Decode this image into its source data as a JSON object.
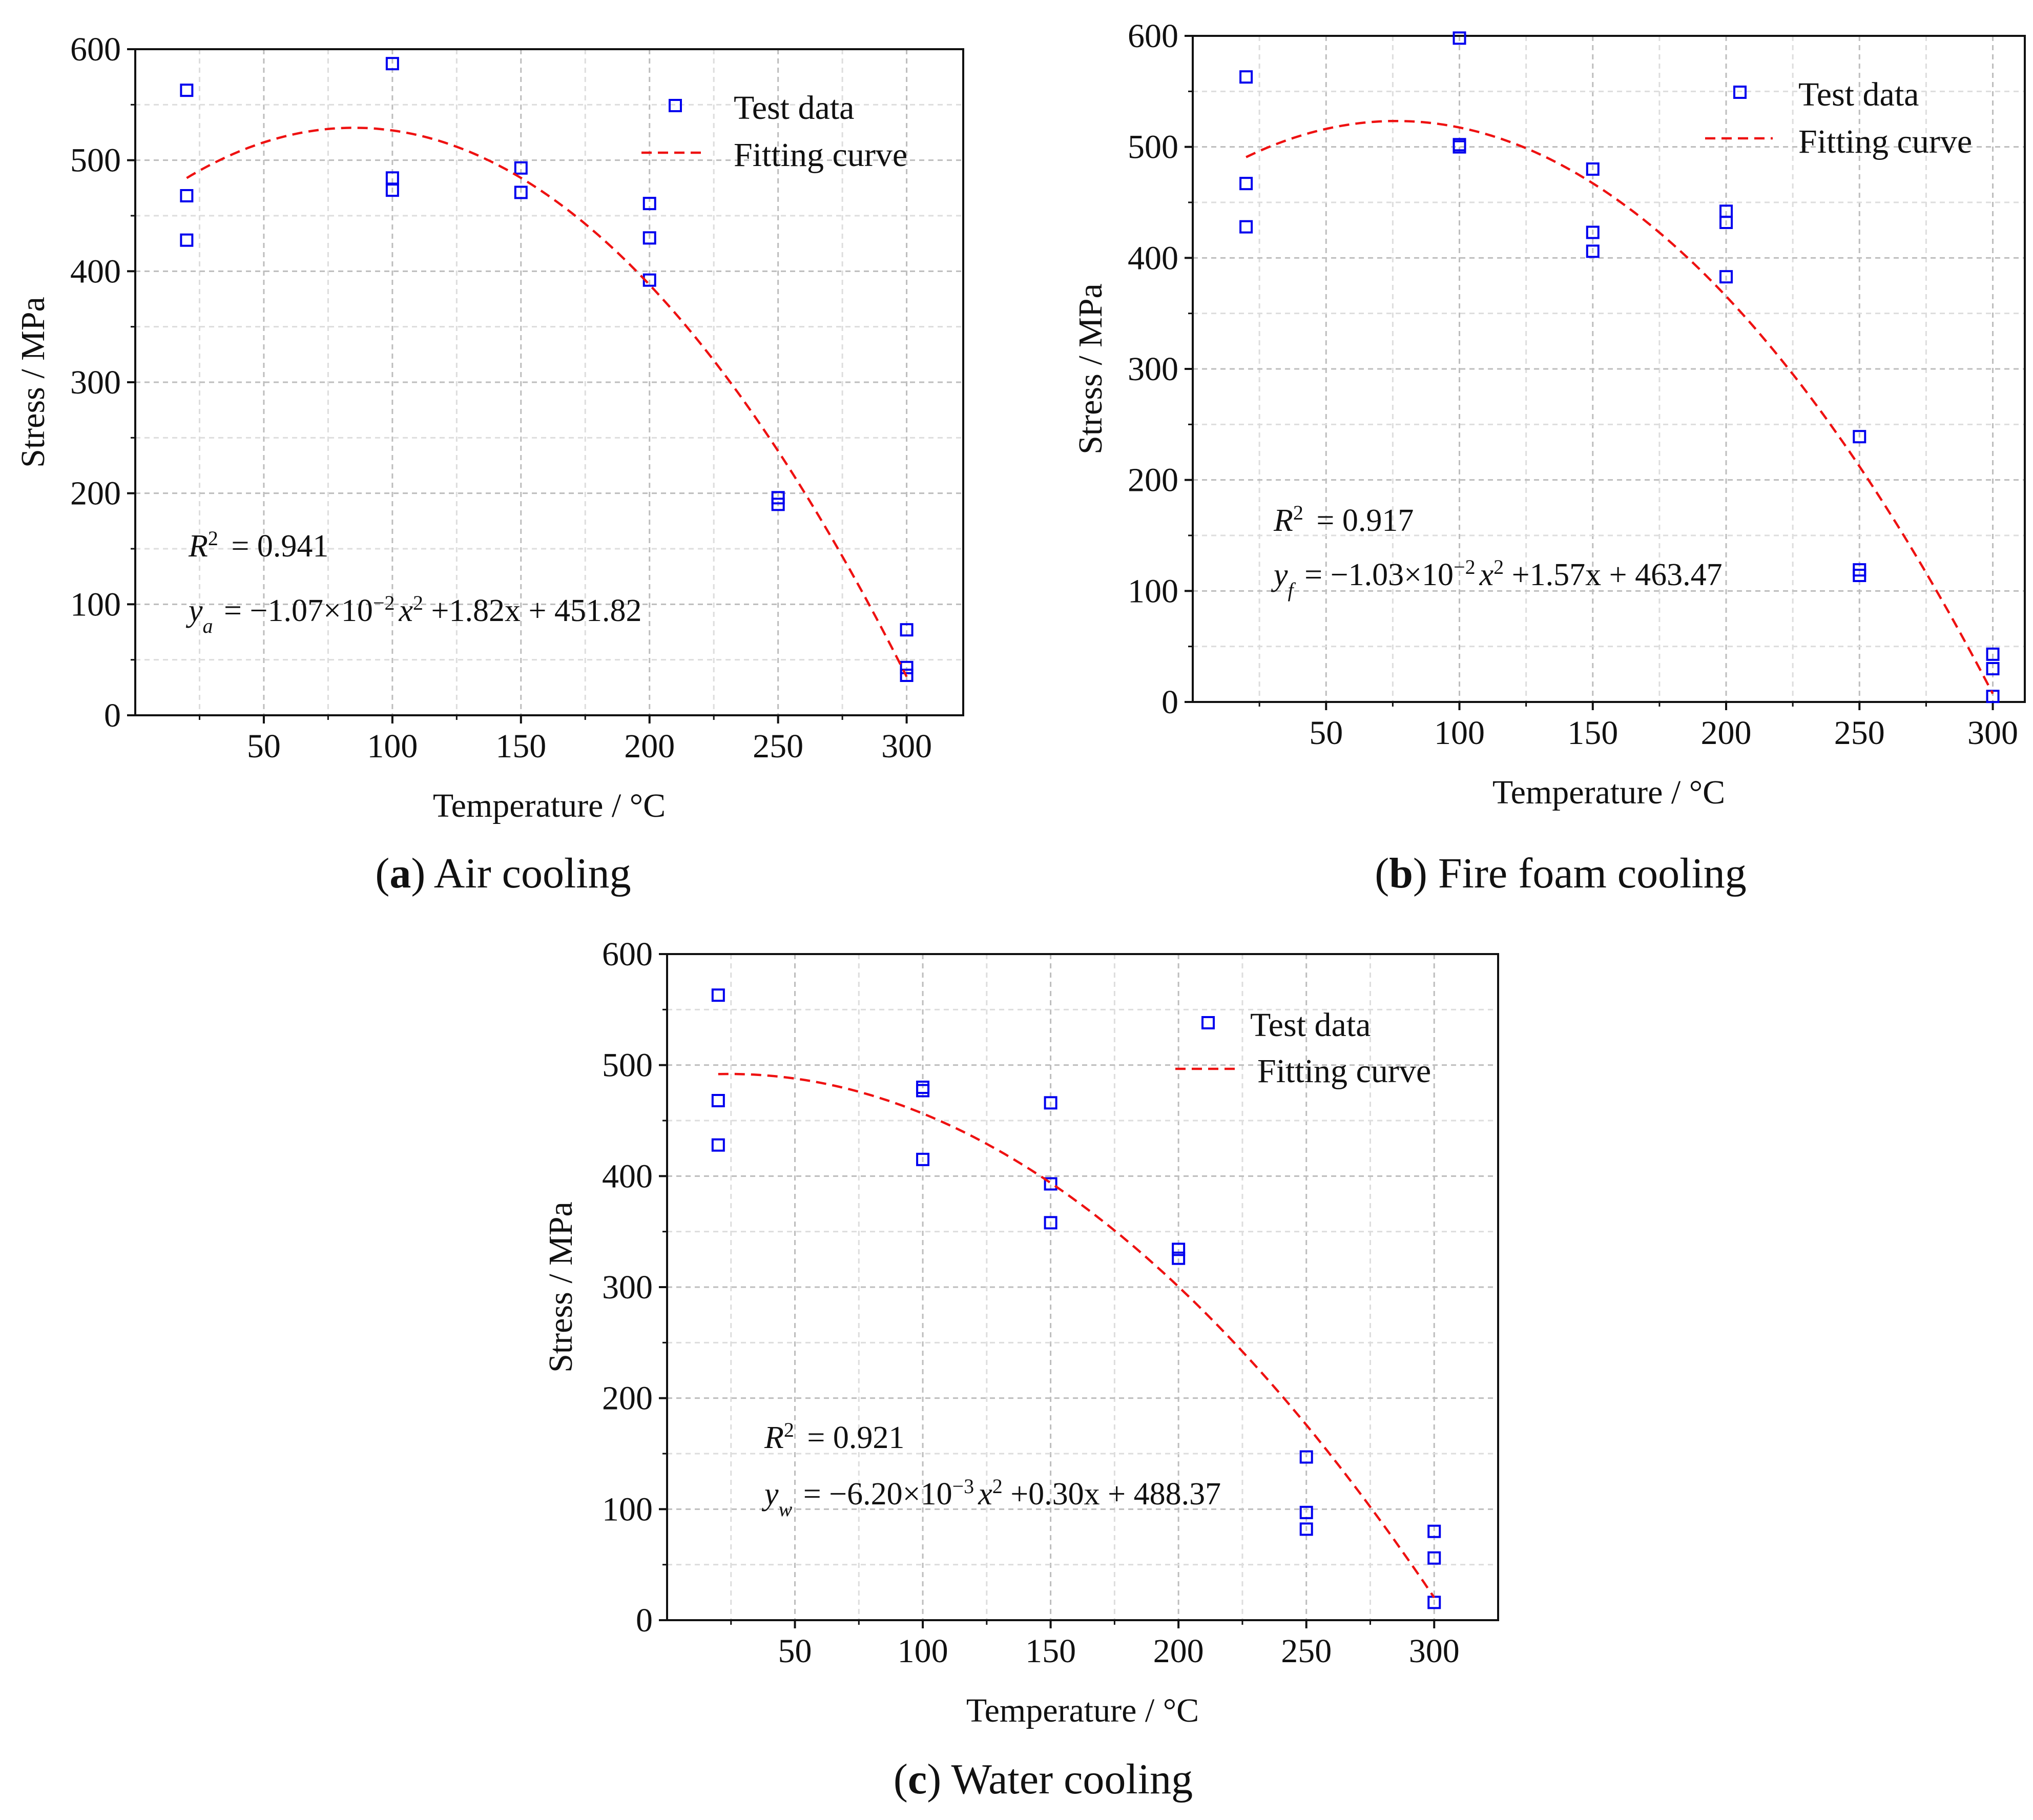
{
  "chart_data": [
    {
      "type": "scatter",
      "panel_label": "a",
      "caption": "Air cooling",
      "xlabel": "Temperature / °C",
      "ylabel": "Stress / MPa",
      "xlim": [
        0,
        322
      ],
      "ylim": [
        0,
        600
      ],
      "xticks": [
        50,
        100,
        150,
        200,
        250,
        300
      ],
      "yticks": [
        0,
        100,
        200,
        300,
        400,
        500,
        600
      ],
      "grid": true,
      "legend": {
        "position": "top-right",
        "entries": [
          "Test data",
          "Fitting curve"
        ]
      },
      "series": [
        {
          "name": "Test data",
          "kind": "scatter",
          "color": "#0000ee",
          "x": [
            20,
            20,
            20,
            100,
            100,
            100,
            150,
            150,
            200,
            200,
            200,
            250,
            250,
            300,
            300,
            300
          ],
          "y": [
            563,
            468,
            428,
            587,
            484,
            473,
            493,
            471,
            461,
            430,
            392,
            196,
            190,
            77,
            43,
            36
          ]
        },
        {
          "name": "Fitting curve",
          "kind": "line",
          "style": "dashed",
          "color": "#ee1111",
          "coefficients": [
            -0.0107,
            1.82,
            451.82
          ],
          "x_range": [
            20,
            300
          ]
        }
      ],
      "annotations": {
        "r2_label": "R",
        "r2_sup": "2",
        "r2_value": "= 0.941",
        "eq_var": "y",
        "eq_sub": "a",
        "eq_mid": "= −1.07×10",
        "eq_exp": "−2",
        "eq_tail": "x",
        "eq_sq": "2",
        "eq_end": "+1.82x + 451.82"
      }
    },
    {
      "type": "scatter",
      "panel_label": "b",
      "caption": "Fire foam cooling",
      "xlabel": "Temperature / °C",
      "ylabel": "Stress / MPa",
      "xlim": [
        0,
        312
      ],
      "ylim": [
        0,
        600
      ],
      "xticks": [
        50,
        100,
        150,
        200,
        250,
        300
      ],
      "yticks": [
        0,
        100,
        200,
        300,
        400,
        500,
        600
      ],
      "grid": true,
      "legend": {
        "position": "top-right",
        "entries": [
          "Test data",
          "Fitting curve"
        ]
      },
      "series": [
        {
          "name": "Test data",
          "kind": "scatter",
          "color": "#0000ee",
          "x": [
            20,
            20,
            20,
            100,
            100,
            100,
            150,
            150,
            150,
            200,
            200,
            200,
            250,
            250,
            250,
            300,
            300,
            300
          ],
          "y": [
            563,
            467,
            428,
            598,
            502,
            500,
            480,
            423,
            406,
            442,
            432,
            383,
            239,
            119,
            114,
            43,
            30,
            5
          ]
        },
        {
          "name": "Fitting curve",
          "kind": "line",
          "style": "dashed",
          "color": "#ee1111",
          "coefficients": [
            -0.0103,
            1.57,
            463.47
          ],
          "x_range": [
            20,
            300
          ]
        }
      ],
      "annotations": {
        "r2_label": "R",
        "r2_sup": "2",
        "r2_value": "= 0.917",
        "eq_var": "y",
        "eq_sub": "f",
        "eq_mid": "= −1.03×10",
        "eq_exp": "−2",
        "eq_tail": "x",
        "eq_sq": "2",
        "eq_end": "+1.57x + 463.47"
      }
    },
    {
      "type": "scatter",
      "panel_label": "c",
      "caption": "Water cooling",
      "xlabel": "Temperature / °C",
      "ylabel": "Stress / MPa",
      "xlim": [
        0,
        325
      ],
      "ylim": [
        0,
        600
      ],
      "xticks": [
        50,
        100,
        150,
        200,
        250,
        300
      ],
      "yticks": [
        0,
        100,
        200,
        300,
        400,
        500,
        600
      ],
      "grid": true,
      "legend": {
        "position": "top-right",
        "entries": [
          "Test data",
          "Fitting curve"
        ]
      },
      "series": [
        {
          "name": "Test data",
          "kind": "scatter",
          "color": "#0000ee",
          "x": [
            20,
            20,
            20,
            100,
            100,
            100,
            150,
            150,
            150,
            200,
            200,
            250,
            250,
            250,
            300,
            300,
            300
          ],
          "y": [
            563,
            468,
            428,
            480,
            477,
            415,
            466,
            393,
            358,
            334,
            326,
            147,
            97,
            82,
            80,
            56,
            16
          ]
        },
        {
          "name": "Fitting curve",
          "kind": "line",
          "style": "dashed",
          "color": "#ee1111",
          "coefficients": [
            -0.0062,
            0.3,
            488.37
          ],
          "x_range": [
            20,
            300
          ]
        }
      ],
      "annotations": {
        "r2_label": "R",
        "r2_sup": "2",
        "r2_value": "= 0.921",
        "eq_var": "y",
        "eq_sub": "w",
        "eq_mid": "= −6.20×10",
        "eq_exp": "−3",
        "eq_tail": "x",
        "eq_sq": "2",
        "eq_end": "+0.30x + 488.37"
      }
    }
  ]
}
